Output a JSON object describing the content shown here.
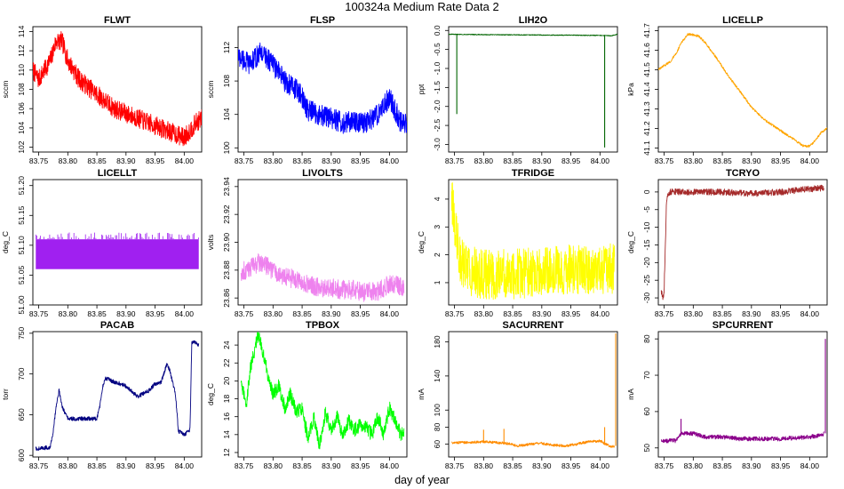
{
  "figure": {
    "title": "100324a   Medium Rate Data 2",
    "xlabel": "day of year"
  },
  "chart_data": [
    {
      "type": "line",
      "title": "FLWT",
      "ylabel": "sccm",
      "color": "#ff0000",
      "xlim": [
        83.74,
        84.03
      ],
      "ylim": [
        101.5,
        114.5
      ],
      "xticks": [
        83.75,
        83.8,
        83.85,
        83.9,
        83.95,
        84.0
      ],
      "yticks": [
        102,
        104,
        106,
        108,
        110,
        112,
        114
      ],
      "noise": 1.0,
      "x": [
        83.74,
        83.75,
        83.76,
        83.77,
        83.78,
        83.79,
        83.8,
        83.82,
        83.84,
        83.86,
        83.88,
        83.9,
        83.92,
        83.94,
        83.96,
        83.98,
        84.0,
        84.02,
        84.03
      ],
      "y": [
        110,
        109,
        110,
        111,
        113,
        113,
        111,
        109,
        108,
        107,
        106,
        105.5,
        105,
        104.5,
        104,
        103.5,
        103,
        104.5,
        105
      ]
    },
    {
      "type": "line",
      "title": "FLSP",
      "ylabel": "sccm",
      "color": "#0000ff",
      "xlim": [
        83.74,
        84.03
      ],
      "ylim": [
        99.5,
        114.5
      ],
      "xticks": [
        83.75,
        83.8,
        83.85,
        83.9,
        83.95,
        84.0
      ],
      "yticks": [
        100,
        104,
        108,
        112
      ],
      "noise": 1.3,
      "x": [
        83.74,
        83.76,
        83.78,
        83.8,
        83.82,
        83.84,
        83.85,
        83.86,
        83.88,
        83.9,
        83.92,
        83.94,
        83.96,
        83.98,
        84.0,
        84.02,
        84.03
      ],
      "y": [
        111,
        110,
        111.5,
        110,
        108,
        107,
        106,
        104.5,
        104,
        103.5,
        103,
        103.2,
        103,
        104,
        106,
        103,
        103
      ]
    },
    {
      "type": "line",
      "title": "LIH2O",
      "ylabel": "ppt",
      "color": "#006400",
      "xlim": [
        83.74,
        84.03
      ],
      "ylim": [
        -3.2,
        0.1
      ],
      "xticks": [
        83.75,
        83.8,
        83.85,
        83.9,
        83.95,
        84.0
      ],
      "yticks": [
        0.0,
        -0.5,
        -1.0,
        -1.5,
        -2.0,
        -2.5,
        -3.0
      ],
      "noise": 0.01,
      "x": [
        83.74,
        83.8,
        83.9,
        84.0,
        84.02,
        84.025,
        84.03
      ],
      "y": [
        -0.1,
        -0.11,
        -0.12,
        -0.13,
        -0.14,
        -0.12,
        -0.1
      ],
      "spikes": [
        {
          "x": 83.754,
          "y": -2.2
        },
        {
          "x": 84.008,
          "y": -3.08
        }
      ]
    },
    {
      "type": "line",
      "title": "LICELLP",
      "ylabel": "kPa",
      "color": "#ffa500",
      "xlim": [
        83.74,
        84.03
      ],
      "ylim": [
        41.08,
        41.72
      ],
      "xticks": [
        83.75,
        83.8,
        83.85,
        83.9,
        83.95,
        84.0
      ],
      "yticks": [
        41.1,
        41.2,
        41.3,
        41.4,
        41.5,
        41.6,
        41.7
      ],
      "noise": 0.006,
      "x": [
        83.74,
        83.75,
        83.76,
        83.77,
        83.78,
        83.79,
        83.8,
        83.81,
        83.82,
        83.84,
        83.86,
        83.88,
        83.9,
        83.92,
        83.94,
        83.96,
        83.98,
        83.99,
        84.0,
        84.01,
        84.02,
        84.03
      ],
      "y": [
        41.5,
        41.52,
        41.54,
        41.58,
        41.64,
        41.68,
        41.68,
        41.67,
        41.64,
        41.56,
        41.47,
        41.39,
        41.31,
        41.25,
        41.21,
        41.17,
        41.13,
        41.11,
        41.11,
        41.14,
        41.18,
        41.2
      ]
    },
    {
      "type": "band",
      "title": "LICELLT",
      "ylabel": "deg_C",
      "color": "#a020f0",
      "xlim": [
        83.74,
        84.03
      ],
      "ylim": [
        51.0,
        51.21
      ],
      "xticks": [
        83.75,
        83.8,
        83.85,
        83.9,
        83.95,
        84.0
      ],
      "yticks": [
        51.0,
        51.05,
        51.1,
        51.15,
        51.2
      ],
      "x": [
        83.745,
        84.025
      ],
      "lower": [
        51.06,
        51.06
      ],
      "upper": [
        51.11,
        51.11
      ],
      "spike_top": 51.122
    },
    {
      "type": "line",
      "title": "LIVOLTS",
      "ylabel": "volts",
      "color": "#ee82ee",
      "xlim": [
        83.74,
        84.03
      ],
      "ylim": [
        23.855,
        23.945
      ],
      "xticks": [
        83.75,
        83.8,
        83.85,
        83.9,
        83.95,
        84.0
      ],
      "yticks": [
        23.86,
        23.88,
        23.9,
        23.92,
        23.94
      ],
      "noise": 0.007,
      "x": [
        83.745,
        83.76,
        83.78,
        83.8,
        83.82,
        83.84,
        83.86,
        83.88,
        83.9,
        83.92,
        83.94,
        83.96,
        83.98,
        84.0,
        84.02,
        84.025
      ],
      "y": [
        23.878,
        23.882,
        23.886,
        23.88,
        23.876,
        23.873,
        23.87,
        23.868,
        23.867,
        23.866,
        23.866,
        23.864,
        23.865,
        23.87,
        23.868,
        23.869
      ]
    },
    {
      "type": "line",
      "title": "TFRIDGE",
      "ylabel": "deg_C",
      "color": "#ffff00",
      "xlim": [
        83.74,
        84.03
      ],
      "ylim": [
        0.2,
        4.7
      ],
      "xticks": [
        83.75,
        83.8,
        83.85,
        83.9,
        83.95,
        84.0
      ],
      "yticks": [
        1,
        2,
        3,
        4
      ],
      "noise": 0.9,
      "x": [
        83.745,
        83.75,
        83.755,
        83.76,
        83.77,
        83.78,
        83.8,
        83.85,
        83.9,
        83.95,
        84.0,
        84.025
      ],
      "y": [
        4.2,
        3.2,
        2.5,
        1.9,
        1.6,
        1.4,
        1.3,
        1.3,
        1.4,
        1.5,
        1.5,
        1.5
      ]
    },
    {
      "type": "line",
      "title": "TCRYO",
      "ylabel": "deg_C",
      "color": "#a52a2a",
      "xlim": [
        83.74,
        84.03
      ],
      "ylim": [
        -32,
        3.5
      ],
      "xticks": [
        83.75,
        83.8,
        83.85,
        83.9,
        83.95,
        84.0
      ],
      "yticks": [
        0,
        -5,
        -10,
        -15,
        -20,
        -25,
        -30
      ],
      "noise": 0.9,
      "x": [
        83.745,
        83.748,
        83.75,
        83.752,
        83.754,
        83.756,
        83.76,
        83.8,
        83.85,
        83.9,
        83.95,
        84.0,
        84.025
      ],
      "y": [
        -28,
        -30,
        -28,
        -15,
        -3,
        -1,
        0,
        0,
        0,
        -0.5,
        0,
        0.8,
        1.2
      ]
    },
    {
      "type": "line",
      "title": "PACAB",
      "ylabel": "torr",
      "color": "#000080",
      "xlim": [
        83.74,
        84.03
      ],
      "ylim": [
        598,
        752
      ],
      "xticks": [
        83.75,
        83.8,
        83.85,
        83.9,
        83.95,
        84.0
      ],
      "yticks": [
        600,
        650,
        700,
        750
      ],
      "noise": 2.5,
      "x": [
        83.745,
        83.77,
        83.775,
        83.78,
        83.785,
        83.79,
        83.8,
        83.82,
        83.85,
        83.855,
        83.86,
        83.865,
        83.88,
        83.89,
        83.9,
        83.92,
        83.94,
        83.95,
        83.96,
        83.965,
        83.97,
        83.975,
        83.98,
        83.985,
        83.99,
        84.0,
        84.01,
        84.013,
        84.016,
        84.025
      ],
      "y": [
        608,
        610,
        630,
        660,
        680,
        660,
        645,
        645,
        645,
        660,
        685,
        695,
        690,
        688,
        685,
        672,
        680,
        688,
        690,
        700,
        712,
        705,
        690,
        675,
        630,
        625,
        632,
        738,
        740,
        735
      ]
    },
    {
      "type": "line",
      "title": "TPBOX",
      "ylabel": "deg_C",
      "color": "#00ff00",
      "xlim": [
        83.74,
        84.03
      ],
      "ylim": [
        11.5,
        25.5
      ],
      "xticks": [
        83.75,
        83.8,
        83.85,
        83.9,
        83.95,
        84.0
      ],
      "yticks": [
        12,
        14,
        16,
        18,
        20,
        22,
        24
      ],
      "noise": 0.8,
      "x": [
        83.745,
        83.755,
        83.76,
        83.77,
        83.775,
        83.78,
        83.79,
        83.8,
        83.81,
        83.82,
        83.83,
        83.84,
        83.85,
        83.86,
        83.87,
        83.88,
        83.89,
        83.9,
        83.91,
        83.92,
        83.93,
        83.94,
        83.95,
        83.96,
        83.97,
        83.98,
        83.99,
        84.0,
        84.01,
        84.02,
        84.025
      ],
      "y": [
        19.5,
        17.5,
        21,
        24,
        25,
        24,
        21,
        18.5,
        19.5,
        17,
        18.5,
        16.5,
        17,
        13.5,
        16,
        12.8,
        16.5,
        14.5,
        16,
        14,
        15.5,
        14.5,
        15,
        14.8,
        14,
        16,
        14,
        17,
        15.5,
        14,
        14.5
      ]
    },
    {
      "type": "line",
      "title": "SACURRENT",
      "ylabel": "mA",
      "color": "#ff8c00",
      "xlim": [
        83.74,
        84.03
      ],
      "ylim": [
        45,
        192
      ],
      "xticks": [
        83.75,
        83.8,
        83.85,
        83.9,
        83.95,
        84.0
      ],
      "yticks": [
        60,
        80,
        100,
        140,
        180
      ],
      "noise": 1.5,
      "x": [
        83.745,
        83.78,
        83.8,
        83.84,
        83.86,
        83.88,
        83.9,
        83.92,
        83.94,
        83.96,
        83.98,
        84.0,
        84.01,
        84.02,
        84.025
      ],
      "y": [
        62,
        62,
        63,
        61,
        58,
        60,
        61,
        59,
        58,
        60,
        63,
        64,
        60,
        57,
        58
      ],
      "spikes": [
        {
          "x": 83.8,
          "y": 77
        },
        {
          "x": 83.835,
          "y": 78
        },
        {
          "x": 84.008,
          "y": 80
        },
        {
          "x": 84.027,
          "y": 190
        }
      ]
    },
    {
      "type": "line",
      "title": "SPCURRENT",
      "ylabel": "mA",
      "color": "#8b008b",
      "xlim": [
        83.74,
        84.03
      ],
      "ylim": [
        47.5,
        82
      ],
      "xticks": [
        83.75,
        83.8,
        83.85,
        83.9,
        83.95,
        84.0
      ],
      "yticks": [
        50,
        60,
        70,
        80
      ],
      "noise": 0.6,
      "x": [
        83.745,
        83.77,
        83.78,
        83.8,
        83.82,
        83.85,
        83.88,
        83.9,
        83.95,
        84.0,
        84.02,
        84.025
      ],
      "y": [
        52,
        52,
        54,
        54,
        53,
        53,
        52.5,
        52.5,
        52.5,
        53,
        53.5,
        54
      ],
      "spikes": [
        {
          "x": 83.779,
          "y": 58
        },
        {
          "x": 84.027,
          "y": 80
        }
      ]
    }
  ]
}
